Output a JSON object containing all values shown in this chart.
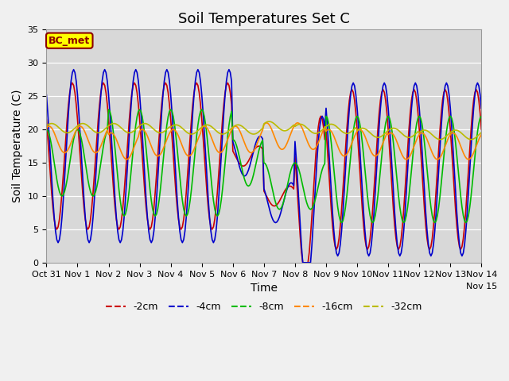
{
  "title": "Soil Temperatures Set C",
  "xlabel": "Time",
  "ylabel": "Soil Temperature (C)",
  "ylim": [
    0,
    35
  ],
  "xlim": [
    0,
    336
  ],
  "xtick_positions": [
    0,
    24,
    48,
    72,
    96,
    120,
    144,
    168,
    192,
    216,
    240,
    264,
    288,
    312,
    336
  ],
  "xtick_labels": [
    "Oct 31",
    "Nov 1",
    "Nov 2",
    "Nov 3",
    "Nov 4",
    "Nov 5",
    "Nov 6",
    "Nov 7",
    "Nov 8",
    "Nov 9",
    "Nov 10",
    "Nov 11",
    "Nov 12",
    "Nov 13",
    "Nov 14"
  ],
  "xtick_extra_label": "Nov 15",
  "line_colors": [
    "#cc0000",
    "#0000cc",
    "#00bb00",
    "#ff8800",
    "#bbbb00"
  ],
  "line_labels": [
    "-2cm",
    "-4cm",
    "-8cm",
    "-16cm",
    "-32cm"
  ],
  "plot_bg": "#d8d8d8",
  "fig_bg": "#f0f0f0",
  "label_box_color": "#ffff00",
  "label_box_edge": "#8b0000",
  "label_text": "BC_met",
  "title_fontsize": 13,
  "axis_fontsize": 10,
  "tick_fontsize": 8
}
